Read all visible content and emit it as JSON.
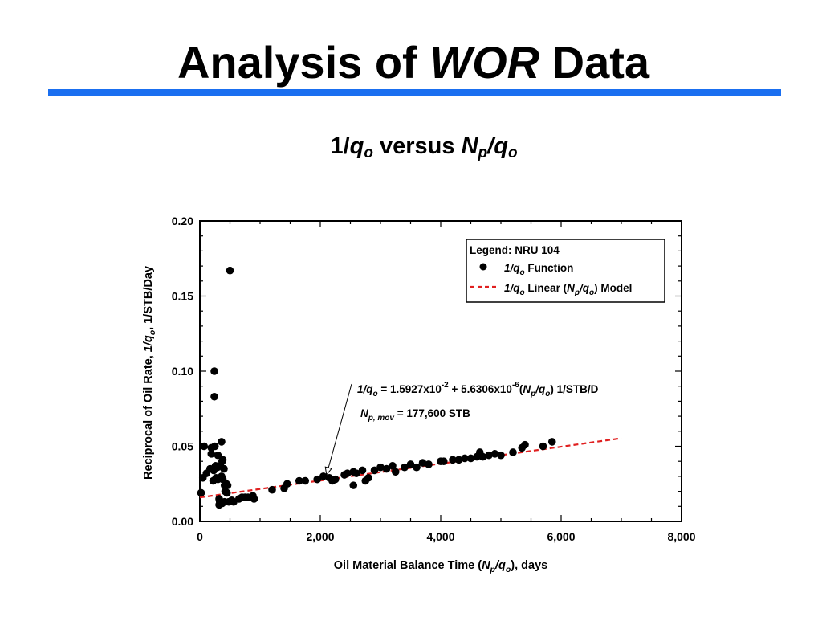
{
  "slide": {
    "title_pre": "Analysis of ",
    "title_em": "WOR",
    "title_post": " Data",
    "accent_color": "#1a6ff0"
  },
  "subtitle": {
    "a": "1/",
    "b": "q",
    "c": "o",
    "d": " versus ",
    "e": "N",
    "f": "p",
    "g": "/",
    "h": "q",
    "i": "o"
  },
  "chart_data": {
    "type": "scatter",
    "title": "",
    "xlabel": "Oil Material Balance Time (Np/qo), days",
    "ylabel": "Reciprocal of Oil Rate, 1/qo, 1/STB/Day",
    "xlim": [
      0,
      8000
    ],
    "ylim": [
      0,
      0.2
    ],
    "x_ticks": [
      0,
      2000,
      4000,
      6000,
      8000
    ],
    "x_tick_labels": [
      "0",
      "2,000",
      "4,000",
      "6,000",
      "8,000"
    ],
    "y_ticks": [
      0,
      0.05,
      0.1,
      0.15,
      0.2
    ],
    "y_tick_labels": [
      "0.00",
      "0.05",
      "0.10",
      "0.15",
      "0.20"
    ],
    "grid": false,
    "legend_placement": "top-right",
    "legend_title": "Legend: NRU 104",
    "series": [
      {
        "name": "1/qo Function",
        "kind": "points",
        "color": "#000000",
        "points": [
          [
            20,
            0.019
          ],
          [
            50,
            0.029
          ],
          [
            70,
            0.05
          ],
          [
            110,
            0.032
          ],
          [
            170,
            0.035
          ],
          [
            190,
            0.045
          ],
          [
            190,
            0.049
          ],
          [
            220,
            0.027
          ],
          [
            230,
            0.034
          ],
          [
            240,
            0.083
          ],
          [
            240,
            0.1
          ],
          [
            250,
            0.05
          ],
          [
            260,
            0.037
          ],
          [
            270,
            0.029
          ],
          [
            290,
            0.036
          ],
          [
            300,
            0.044
          ],
          [
            300,
            0.028
          ],
          [
            320,
            0.011
          ],
          [
            320,
            0.015
          ],
          [
            330,
            0.013
          ],
          [
            340,
            0.037
          ],
          [
            360,
            0.053
          ],
          [
            360,
            0.03
          ],
          [
            370,
            0.04
          ],
          [
            370,
            0.012
          ],
          [
            380,
            0.041
          ],
          [
            380,
            0.028
          ],
          [
            400,
            0.035
          ],
          [
            410,
            0.024
          ],
          [
            410,
            0.013
          ],
          [
            420,
            0.02
          ],
          [
            440,
            0.025
          ],
          [
            450,
            0.019
          ],
          [
            460,
            0.024
          ],
          [
            480,
            0.013
          ],
          [
            500,
            0.167
          ],
          [
            530,
            0.014
          ],
          [
            560,
            0.013
          ],
          [
            650,
            0.015
          ],
          [
            700,
            0.016
          ],
          [
            750,
            0.016
          ],
          [
            800,
            0.016
          ],
          [
            880,
            0.017
          ],
          [
            900,
            0.015
          ],
          [
            1200,
            0.021
          ],
          [
            1400,
            0.022
          ],
          [
            1450,
            0.025
          ],
          [
            1650,
            0.027
          ],
          [
            1750,
            0.027
          ],
          [
            1950,
            0.028
          ],
          [
            2050,
            0.03
          ],
          [
            2150,
            0.029
          ],
          [
            2200,
            0.027
          ],
          [
            2250,
            0.028
          ],
          [
            2400,
            0.031
          ],
          [
            2450,
            0.032
          ],
          [
            2550,
            0.033
          ],
          [
            2550,
            0.024
          ],
          [
            2600,
            0.032
          ],
          [
            2700,
            0.034
          ],
          [
            2750,
            0.027
          ],
          [
            2800,
            0.029
          ],
          [
            2900,
            0.034
          ],
          [
            3000,
            0.036
          ],
          [
            3100,
            0.035
          ],
          [
            3200,
            0.037
          ],
          [
            3250,
            0.033
          ],
          [
            3400,
            0.036
          ],
          [
            3500,
            0.038
          ],
          [
            3600,
            0.036
          ],
          [
            3700,
            0.039
          ],
          [
            3800,
            0.038
          ],
          [
            4000,
            0.04
          ],
          [
            4050,
            0.04
          ],
          [
            4200,
            0.041
          ],
          [
            4300,
            0.041
          ],
          [
            4400,
            0.042
          ],
          [
            4500,
            0.042
          ],
          [
            4600,
            0.043
          ],
          [
            4650,
            0.046
          ],
          [
            4700,
            0.043
          ],
          [
            4800,
            0.044
          ],
          [
            4900,
            0.045
          ],
          [
            5000,
            0.044
          ],
          [
            5200,
            0.046
          ],
          [
            5350,
            0.049
          ],
          [
            5400,
            0.051
          ],
          [
            5700,
            0.05
          ],
          [
            5850,
            0.053
          ]
        ]
      },
      {
        "name": "1/qo Linear (Np/qo) Model",
        "kind": "dashed-line",
        "color": "#e02020",
        "points": [
          [
            0,
            0.015927
          ],
          [
            7000,
            0.055341
          ]
        ]
      }
    ],
    "legend": {
      "title": "Legend: NRU 104",
      "entries": [
        {
          "a": "1/",
          "b": "q",
          "c": "o",
          "d": " Function"
        },
        {
          "a": "1/",
          "b": "q",
          "c": "o",
          "d": " Linear (",
          "e": "N",
          "f": "p",
          "g": "/",
          "h": "q",
          "i": "o",
          "j": ") Model"
        }
      ]
    },
    "annotation": {
      "line1": {
        "a": "1/",
        "b": "q",
        "c": "o",
        "d": " = 1.5927x10",
        "e": "-2",
        "f": " + 5.6306x10",
        "g": "-6",
        "h": "(",
        "i": "N",
        "j": "p",
        "k": "/",
        "l": "q",
        "m": "o",
        "n": ") 1/STB/D"
      },
      "line2": {
        "a": "N",
        "b": "p, mov",
        "c": " = 177,600 STB"
      },
      "arrow_target": [
        2050,
        0.03
      ]
    },
    "xlabel_rich": {
      "a": "Oil Material Balance Time (",
      "b": "N",
      "c": "p",
      "d": "/",
      "e": "q",
      "f": "o",
      "g": "), days"
    },
    "ylabel_rich": {
      "a": "Reciprocal of Oil Rate, ",
      "b": "1/",
      "c": "q",
      "d": "o",
      "e": ", 1/STB/Day"
    }
  }
}
